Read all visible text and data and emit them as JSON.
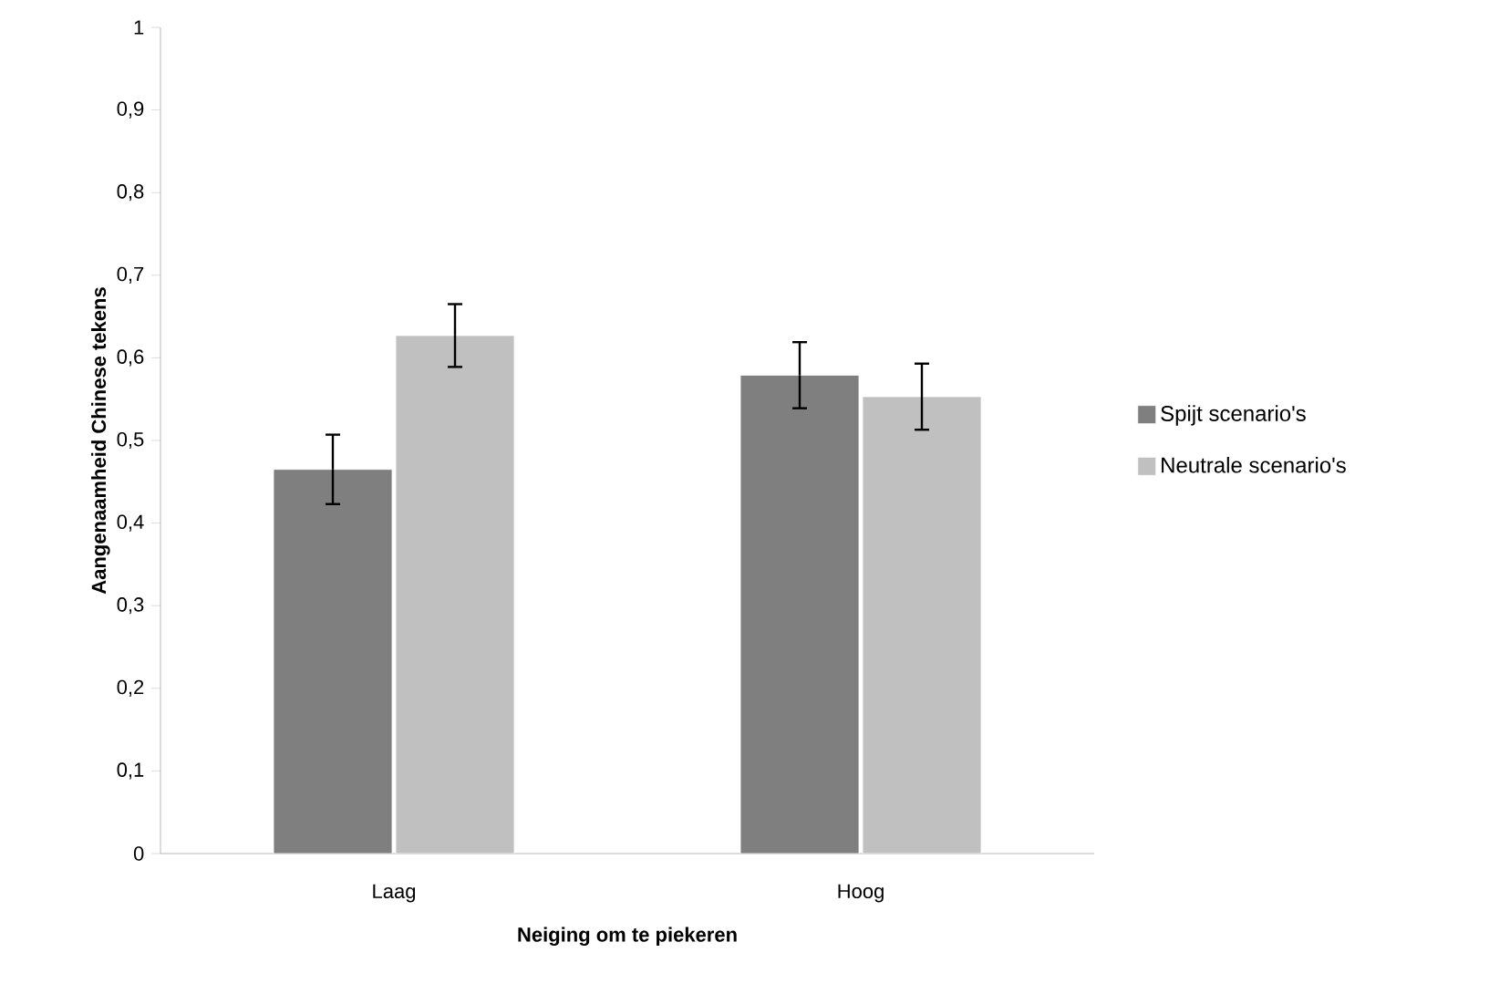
{
  "chart_data": {
    "type": "bar",
    "xlabel": "Neiging om te piekeren",
    "ylabel": "Aangenaamheid Chinese tekens",
    "categories": [
      "Laag",
      "Hoog"
    ],
    "series": [
      {
        "name": "Spijt scenario's",
        "color": "#7f7f7f",
        "values": [
          0.465,
          0.579
        ],
        "errors": [
          0.042,
          0.04
        ]
      },
      {
        "name": "Neutrale scenario's",
        "color": "#c0c0c0",
        "values": [
          0.627,
          0.553
        ],
        "errors": [
          0.038,
          0.04
        ]
      }
    ],
    "ylim": [
      0,
      1
    ],
    "yticks": [
      0,
      {
        "value": 0.1,
        "label": "0,1"
      },
      {
        "value": 0.2,
        "label": "0,2"
      },
      {
        "value": 0.3,
        "label": "0,3"
      },
      {
        "value": 0.4,
        "label": "0,4"
      },
      {
        "value": 0.5,
        "label": "0,5"
      },
      {
        "value": 0.6,
        "label": "0,6"
      },
      {
        "value": 0.7,
        "label": "0,7"
      },
      {
        "value": 0.8,
        "label": "0,8"
      },
      {
        "value": 0.9,
        "label": "0,9"
      },
      1
    ],
    "grid": false,
    "legend": "right"
  }
}
